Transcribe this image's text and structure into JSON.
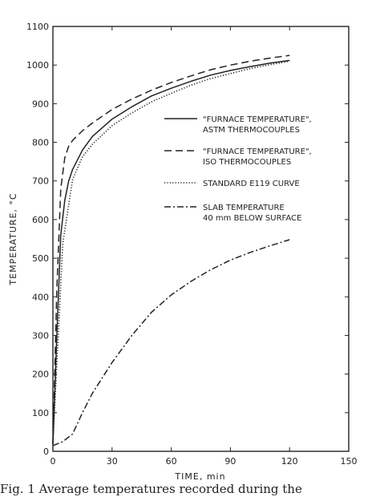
{
  "chart_data": {
    "type": "line",
    "xlabel": "TIME, min",
    "ylabel": "TEMPERATURE, °C",
    "xlim": [
      0,
      150
    ],
    "ylim": [
      0,
      1100
    ],
    "x_ticks": [
      0,
      30,
      60,
      90,
      120,
      150
    ],
    "y_ticks": [
      0,
      100,
      200,
      300,
      400,
      500,
      600,
      700,
      800,
      900,
      1000,
      1100
    ],
    "grid": false,
    "legend_position": "right",
    "series": [
      {
        "name": [
          "\"FURNACE TEMPERATURE\",",
          "ASTM THERMOCOUPLES"
        ],
        "style": "solid",
        "x": [
          0,
          2,
          4,
          6,
          8,
          10,
          15,
          20,
          30,
          40,
          50,
          60,
          70,
          80,
          90,
          100,
          110,
          120
        ],
        "y": [
          20,
          300,
          560,
          650,
          700,
          730,
          780,
          815,
          860,
          892,
          920,
          940,
          958,
          974,
          986,
          996,
          1005,
          1012
        ]
      },
      {
        "name": [
          "\"FURNACE TEMPERATURE\",",
          "ISO THERMOCOUPLES"
        ],
        "style": "dashed",
        "x": [
          0,
          2,
          4,
          6,
          8,
          10,
          15,
          20,
          30,
          40,
          50,
          60,
          70,
          80,
          90,
          100,
          110,
          120
        ],
        "y": [
          20,
          420,
          680,
          760,
          790,
          805,
          830,
          850,
          885,
          912,
          935,
          955,
          972,
          988,
          1000,
          1010,
          1018,
          1025
        ]
      },
      {
        "name": [
          "STANDARD E119 CURVE"
        ],
        "style": "dotted",
        "x": [
          0,
          5,
          10,
          15,
          20,
          30,
          40,
          50,
          60,
          70,
          80,
          90,
          100,
          110,
          120
        ],
        "y": [
          20,
          538,
          704,
          763,
          795,
          843,
          876,
          905,
          927,
          948,
          965,
          978,
          991,
          1001,
          1010
        ]
      },
      {
        "name": [
          "SLAB TEMPERATURE",
          "40 mm BELOW SURFACE"
        ],
        "style": "dashdot",
        "x": [
          0,
          5,
          10,
          15,
          20,
          30,
          40,
          50,
          60,
          70,
          80,
          90,
          100,
          110,
          120
        ],
        "y": [
          15,
          25,
          45,
          100,
          150,
          230,
          300,
          360,
          405,
          440,
          470,
          495,
          515,
          532,
          548
        ]
      }
    ]
  },
  "caption": "Fig. 1 Average temperatures recorded during the"
}
